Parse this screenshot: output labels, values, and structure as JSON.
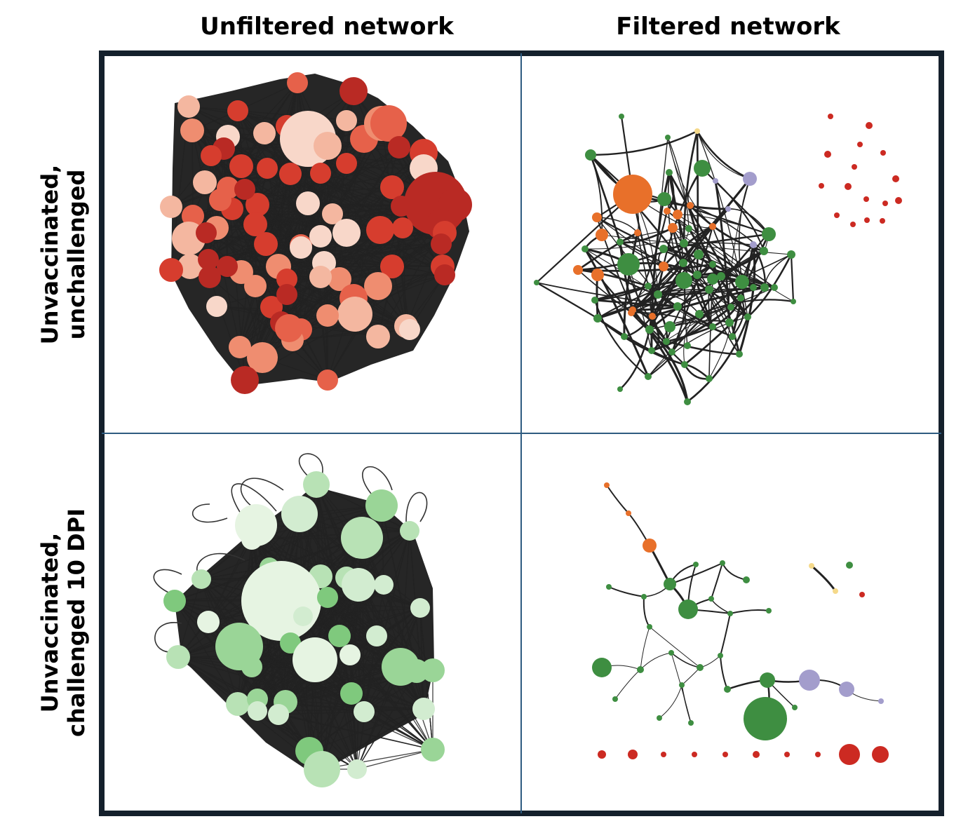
{
  "columns": {
    "unfiltered": "Unfiltered network",
    "filtered": "Filtered network"
  },
  "rows": {
    "top": {
      "line1": "Unvaccinated,",
      "line2": "unchallenged"
    },
    "bottom": {
      "line1": "Unvaccinated,",
      "line2": "challenged 10 DPI"
    }
  },
  "colors": {
    "frame": "#14202c",
    "divider": "#2e5b80",
    "edge": "#222222",
    "red_scale": [
      "#f8d7c9",
      "#f4b7a0",
      "#ef8d70",
      "#e6614a",
      "#d63d2e",
      "#b92a24"
    ],
    "green_scale": [
      "#e6f4e2",
      "#d2ecd0",
      "#b8e2b5",
      "#9ad597",
      "#7fc97d"
    ],
    "module_green": "#3e8e41",
    "module_orange": "#e8702a",
    "module_purple": "#a39dcc",
    "module_yellow": "#f5d98a",
    "module_red": "#cc2a22"
  }
}
